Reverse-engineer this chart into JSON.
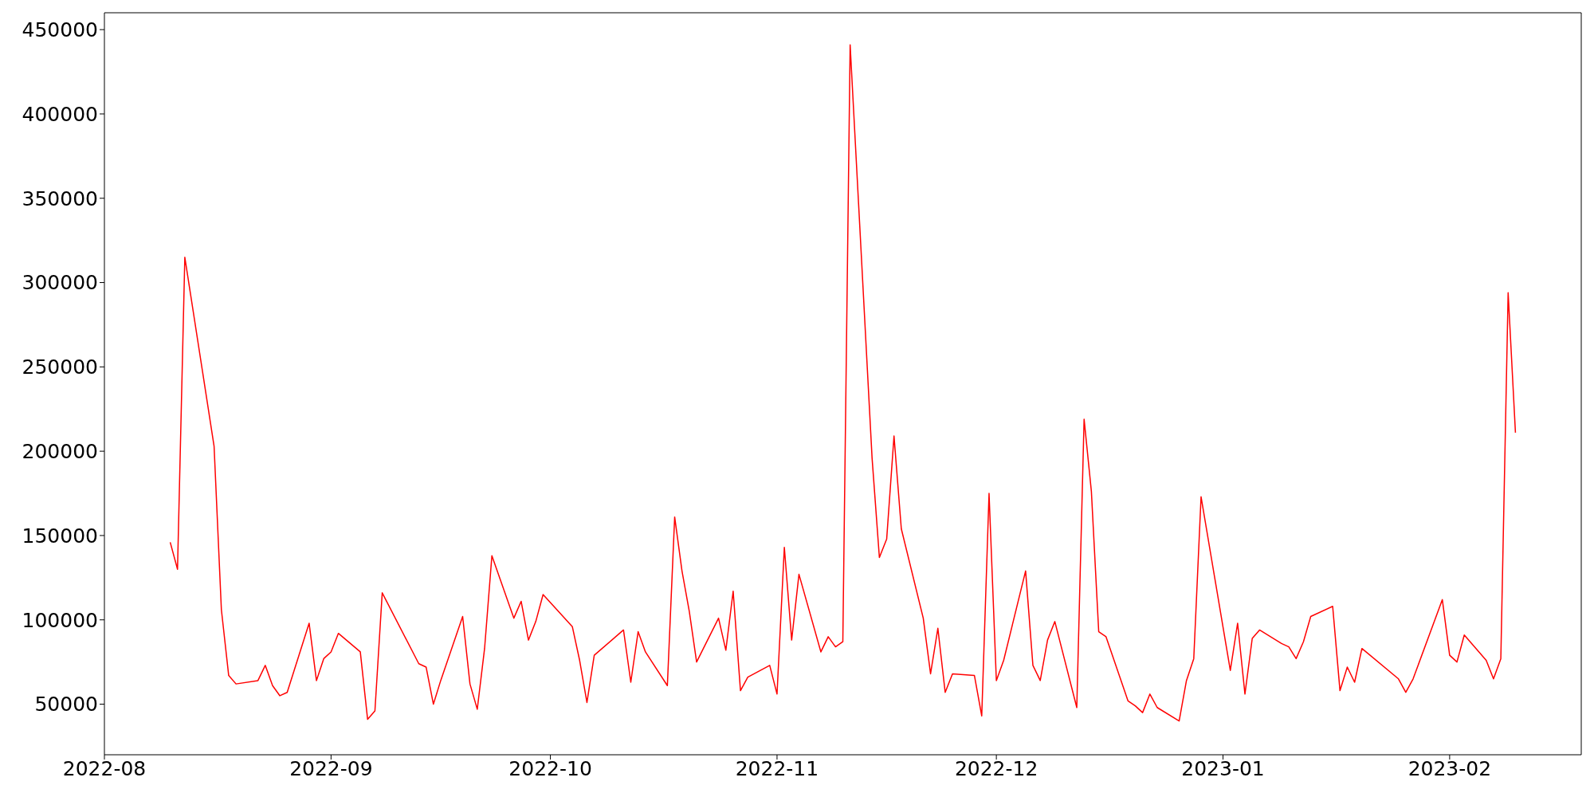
{
  "chart_data": {
    "type": "line",
    "x": [
      "2022-08-10",
      "2022-08-11",
      "2022-08-12",
      "2022-08-16",
      "2022-08-17",
      "2022-08-18",
      "2022-08-19",
      "2022-08-22",
      "2022-08-23",
      "2022-08-24",
      "2022-08-25",
      "2022-08-26",
      "2022-08-29",
      "2022-08-30",
      "2022-08-31",
      "2022-09-01",
      "2022-09-02",
      "2022-09-05",
      "2022-09-06",
      "2022-09-07",
      "2022-09-08",
      "2022-09-13",
      "2022-09-14",
      "2022-09-15",
      "2022-09-16",
      "2022-09-19",
      "2022-09-20",
      "2022-09-21",
      "2022-09-22",
      "2022-09-23",
      "2022-09-26",
      "2022-09-27",
      "2022-09-28",
      "2022-09-29",
      "2022-09-30",
      "2022-10-04",
      "2022-10-05",
      "2022-10-06",
      "2022-10-07",
      "2022-10-11",
      "2022-10-12",
      "2022-10-13",
      "2022-10-14",
      "2022-10-17",
      "2022-10-18",
      "2022-10-19",
      "2022-10-20",
      "2022-10-21",
      "2022-10-24",
      "2022-10-25",
      "2022-10-26",
      "2022-10-27",
      "2022-10-28",
      "2022-10-31",
      "2022-11-01",
      "2022-11-02",
      "2022-11-03",
      "2022-11-04",
      "2022-11-07",
      "2022-11-08",
      "2022-11-09",
      "2022-11-10",
      "2022-11-11",
      "2022-11-14",
      "2022-11-15",
      "2022-11-16",
      "2022-11-17",
      "2022-11-18",
      "2022-11-21",
      "2022-11-22",
      "2022-11-23",
      "2022-11-24",
      "2022-11-25",
      "2022-11-28",
      "2022-11-29",
      "2022-11-30",
      "2022-12-01",
      "2022-12-02",
      "2022-12-05",
      "2022-12-06",
      "2022-12-07",
      "2022-12-08",
      "2022-12-09",
      "2022-12-12",
      "2022-12-13",
      "2022-12-14",
      "2022-12-15",
      "2022-12-16",
      "2022-12-19",
      "2022-12-20",
      "2022-12-21",
      "2022-12-22",
      "2022-12-23",
      "2022-12-26",
      "2022-12-27",
      "2022-12-28",
      "2022-12-29",
      "2023-01-02",
      "2023-01-03",
      "2023-01-04",
      "2023-01-05",
      "2023-01-06",
      "2023-01-09",
      "2023-01-10",
      "2023-01-11",
      "2023-01-12",
      "2023-01-13",
      "2023-01-16",
      "2023-01-17",
      "2023-01-18",
      "2023-01-19",
      "2023-01-20",
      "2023-01-25",
      "2023-01-26",
      "2023-01-27",
      "2023-01-31",
      "2023-02-01",
      "2023-02-02",
      "2023-02-03",
      "2023-02-06",
      "2023-02-07",
      "2023-02-08",
      "2023-02-09",
      "2023-02-10"
    ],
    "series": [
      {
        "color": "#ff0000",
        "values": [
          146000,
          130000,
          315000,
          203000,
          106000,
          67000,
          62000,
          64000,
          73000,
          61000,
          55000,
          57000,
          98000,
          64000,
          77000,
          81000,
          92000,
          81000,
          41000,
          46000,
          116000,
          74000,
          72000,
          50000,
          64000,
          102000,
          62000,
          47000,
          83000,
          138000,
          101000,
          111000,
          88000,
          99000,
          115000,
          96000,
          76000,
          51000,
          79000,
          94000,
          63000,
          93000,
          81000,
          61000,
          161000,
          129000,
          105000,
          75000,
          101000,
          82000,
          117000,
          58000,
          66000,
          73000,
          56000,
          143000,
          88000,
          127000,
          81000,
          90000,
          84000,
          87000,
          441000,
          196000,
          137000,
          148000,
          209000,
          154000,
          101000,
          68000,
          95000,
          57000,
          68000,
          67000,
          43000,
          175000,
          64000,
          76000,
          129000,
          73000,
          64000,
          88000,
          99000,
          48000,
          219000,
          176000,
          93000,
          90000,
          52000,
          49000,
          45000,
          56000,
          48000,
          40000,
          64000,
          77000,
          173000,
          70000,
          98000,
          56000,
          89000,
          94000,
          86000,
          84000,
          77000,
          87000,
          102000,
          108000,
          58000,
          72000,
          63000,
          83000,
          65000,
          57000,
          65000,
          112000,
          79000,
          75000,
          91000,
          76000,
          65000,
          77000,
          294000,
          211000
        ]
      }
    ],
    "xlim": [
      "2022-08-01",
      "2023-02-19"
    ],
    "xticks": [
      {
        "value": "2022-08-01",
        "label": "2022-08"
      },
      {
        "value": "2022-09-01",
        "label": "2022-09"
      },
      {
        "value": "2022-10-01",
        "label": "2022-10"
      },
      {
        "value": "2022-11-01",
        "label": "2022-11"
      },
      {
        "value": "2022-12-01",
        "label": "2022-12"
      },
      {
        "value": "2023-01-01",
        "label": "2023-01"
      },
      {
        "value": "2023-02-01",
        "label": "2023-02"
      }
    ],
    "ylim": [
      20000,
      460000
    ],
    "yticks": [
      50000,
      100000,
      150000,
      200000,
      250000,
      300000,
      350000,
      400000,
      450000
    ],
    "grid": false,
    "legend": false
  }
}
